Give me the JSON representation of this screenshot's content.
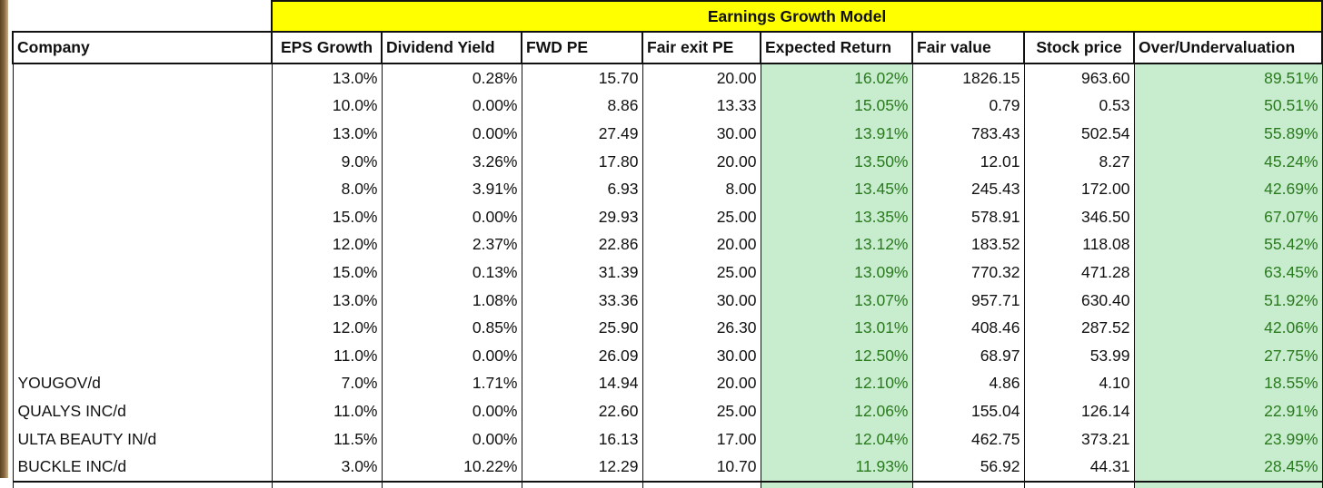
{
  "title": "Earnings Growth Model",
  "columns": [
    "Company",
    "EPS Growth",
    "Dividend Yield",
    "FWD PE",
    "Fair exit PE",
    "Expected Return",
    "Fair value",
    "Stock price",
    "Over/Undervaluation"
  ],
  "colors": {
    "title_bg": "#ffff00",
    "highlight_bg": "#c8ecce",
    "highlight_text": "#2a7a1e"
  },
  "rows": [
    {
      "company": "",
      "eps": "13.0%",
      "div": "0.28%",
      "fwd": "15.70",
      "exit": "20.00",
      "ret": "16.02%",
      "fair": "1826.15",
      "price": "963.60",
      "ou": "89.51%"
    },
    {
      "company": "",
      "eps": "10.0%",
      "div": "0.00%",
      "fwd": "8.86",
      "exit": "13.33",
      "ret": "15.05%",
      "fair": "0.79",
      "price": "0.53",
      "ou": "50.51%"
    },
    {
      "company": "",
      "eps": "13.0%",
      "div": "0.00%",
      "fwd": "27.49",
      "exit": "30.00",
      "ret": "13.91%",
      "fair": "783.43",
      "price": "502.54",
      "ou": "55.89%"
    },
    {
      "company": "",
      "eps": "9.0%",
      "div": "3.26%",
      "fwd": "17.80",
      "exit": "20.00",
      "ret": "13.50%",
      "fair": "12.01",
      "price": "8.27",
      "ou": "45.24%"
    },
    {
      "company": "",
      "eps": "8.0%",
      "div": "3.91%",
      "fwd": "6.93",
      "exit": "8.00",
      "ret": "13.45%",
      "fair": "245.43",
      "price": "172.00",
      "ou": "42.69%"
    },
    {
      "company": "",
      "eps": "15.0%",
      "div": "0.00%",
      "fwd": "29.93",
      "exit": "25.00",
      "ret": "13.35%",
      "fair": "578.91",
      "price": "346.50",
      "ou": "67.07%"
    },
    {
      "company": "",
      "eps": "12.0%",
      "div": "2.37%",
      "fwd": "22.86",
      "exit": "20.00",
      "ret": "13.12%",
      "fair": "183.52",
      "price": "118.08",
      "ou": "55.42%"
    },
    {
      "company": "",
      "eps": "15.0%",
      "div": "0.13%",
      "fwd": "31.39",
      "exit": "25.00",
      "ret": "13.09%",
      "fair": "770.32",
      "price": "471.28",
      "ou": "63.45%"
    },
    {
      "company": "",
      "eps": "13.0%",
      "div": "1.08%",
      "fwd": "33.36",
      "exit": "30.00",
      "ret": "13.07%",
      "fair": "957.71",
      "price": "630.40",
      "ou": "51.92%"
    },
    {
      "company": "",
      "eps": "12.0%",
      "div": "0.85%",
      "fwd": "25.90",
      "exit": "26.30",
      "ret": "13.01%",
      "fair": "408.46",
      "price": "287.52",
      "ou": "42.06%"
    },
    {
      "company": "",
      "eps": "11.0%",
      "div": "0.00%",
      "fwd": "26.09",
      "exit": "30.00",
      "ret": "12.50%",
      "fair": "68.97",
      "price": "53.99",
      "ou": "27.75%"
    },
    {
      "company": "YOUGOV/d",
      "eps": "7.0%",
      "div": "1.71%",
      "fwd": "14.94",
      "exit": "20.00",
      "ret": "12.10%",
      "fair": "4.86",
      "price": "4.10",
      "ou": "18.55%"
    },
    {
      "company": "QUALYS INC/d",
      "eps": "11.0%",
      "div": "0.00%",
      "fwd": "22.60",
      "exit": "25.00",
      "ret": "12.06%",
      "fair": "155.04",
      "price": "126.14",
      "ou": "22.91%"
    },
    {
      "company": "ULTA BEAUTY IN/d",
      "eps": "11.5%",
      "div": "0.00%",
      "fwd": "16.13",
      "exit": "17.00",
      "ret": "12.04%",
      "fair": "462.75",
      "price": "373.21",
      "ou": "23.99%"
    },
    {
      "company": "BUCKLE INC/d",
      "eps": "3.0%",
      "div": "10.22%",
      "fwd": "12.29",
      "exit": "10.70",
      "ret": "11.93%",
      "fair": "56.92",
      "price": "44.31",
      "ou": "28.45%"
    }
  ]
}
